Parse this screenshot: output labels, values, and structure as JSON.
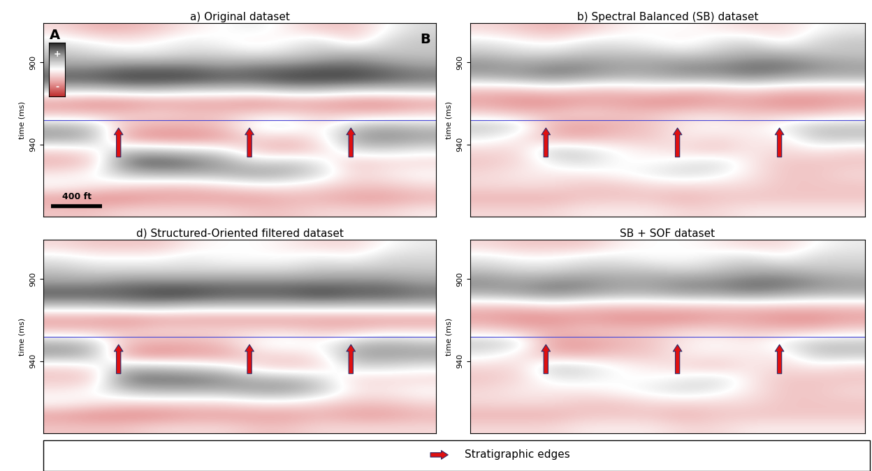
{
  "chart_data": [
    {
      "type": "heatmap",
      "title": "a) Original dataset",
      "ylabel": "time (ms)",
      "ylim": [
        975,
        881
      ],
      "yticks": [
        900,
        940
      ],
      "tick_labels": "y",
      "horizon": 928,
      "edges": [
        2.3,
        6.3,
        9.4
      ],
      "color_range": [
        -1,
        1
      ],
      "annotations": [
        "A",
        "B"
      ],
      "scale_bar": "400 ft",
      "colorbar_labels": [
        "+",
        "-"
      ],
      "cells": [
        [
          -0.2,
          -0.4,
          -0.4,
          -0.3,
          -0.1,
          0.0,
          0.1,
          -0.1,
          -0.3,
          -0.3,
          0.0,
          0.2
        ],
        [
          0.1,
          0.0,
          -0.1,
          0.0,
          0.1,
          0.0,
          -0.1,
          0.0,
          0.2,
          -0.2,
          0.2,
          0.3
        ],
        [
          0.3,
          0.2,
          0.1,
          0.1,
          0.2,
          0.2,
          0.1,
          0.2,
          0.3,
          0.4,
          0.3,
          0.3
        ],
        [
          0.5,
          0.5,
          0.6,
          0.6,
          0.6,
          0.5,
          0.6,
          0.6,
          0.7,
          0.7,
          0.6,
          0.5
        ],
        [
          0.8,
          0.8,
          0.9,
          0.9,
          0.9,
          0.8,
          0.8,
          0.9,
          0.9,
          0.9,
          0.8,
          0.7
        ],
        [
          0.3,
          0.3,
          0.4,
          0.4,
          0.3,
          0.3,
          0.3,
          0.4,
          0.4,
          0.3,
          0.3,
          0.3
        ],
        [
          -0.5,
          -0.6,
          -0.6,
          -0.5,
          -0.5,
          -0.5,
          -0.6,
          -0.5,
          -0.5,
          -0.6,
          -0.6,
          -0.5
        ],
        [
          -0.3,
          -0.3,
          -0.3,
          -0.2,
          -0.3,
          -0.3,
          -0.2,
          -0.2,
          -0.3,
          -0.3,
          -0.3,
          -0.2
        ],
        [
          0.4,
          0.3,
          -0.3,
          -0.4,
          -0.4,
          -0.3,
          0.1,
          0.2,
          -0.1,
          0.3,
          0.4,
          0.3
        ],
        [
          0.5,
          0.4,
          -0.5,
          -0.6,
          -0.6,
          -0.5,
          -0.2,
          -0.3,
          -0.1,
          0.5,
          0.6,
          0.5
        ],
        [
          -0.2,
          -0.1,
          0.3,
          0.3,
          0.2,
          0.1,
          -0.3,
          -0.4,
          -0.2,
          0.2,
          0.2,
          0.1
        ],
        [
          -0.4,
          -0.3,
          0.7,
          0.8,
          0.7,
          0.5,
          0.2,
          0.3,
          0.1,
          -0.3,
          -0.2,
          -0.2
        ],
        [
          -0.1,
          0.0,
          0.3,
          0.4,
          0.4,
          0.4,
          0.5,
          0.4,
          0.2,
          -0.2,
          -0.1,
          0.0
        ],
        [
          0.0,
          -0.1,
          -0.2,
          -0.3,
          -0.3,
          -0.2,
          -0.1,
          -0.1,
          -0.2,
          -0.3,
          -0.3,
          -0.2
        ],
        [
          -0.5,
          -0.6,
          -0.6,
          -0.5,
          -0.5,
          -0.5,
          -0.5,
          -0.4,
          -0.4,
          -0.5,
          -0.5,
          -0.4
        ],
        [
          -0.3,
          -0.3,
          -0.2,
          -0.2,
          -0.2,
          -0.2,
          -0.3,
          -0.3,
          -0.2,
          -0.2,
          -0.2,
          -0.1
        ]
      ]
    },
    {
      "type": "heatmap",
      "title": "b) Spectral Balanced (SB) dataset",
      "ylabel": "time (ms)",
      "ylim": [
        975,
        881
      ],
      "yticks": [
        900,
        940
      ],
      "tick_labels": "y",
      "horizon": 928,
      "edges": [
        2.3,
        6.3,
        9.4
      ],
      "color_range": [
        -1,
        1
      ],
      "cells": [
        [
          -0.2,
          -0.3,
          -0.4,
          -0.3,
          -0.1,
          0.0,
          0.0,
          -0.1,
          -0.2,
          -0.2,
          0.0,
          0.1
        ],
        [
          0.1,
          0.0,
          -0.1,
          0.1,
          0.1,
          0.0,
          -0.1,
          0.1,
          0.2,
          -0.1,
          0.2,
          0.3
        ],
        [
          0.3,
          0.2,
          0.2,
          0.3,
          0.3,
          0.3,
          0.2,
          0.3,
          0.4,
          0.4,
          0.3,
          0.3
        ],
        [
          0.6,
          0.5,
          0.6,
          0.6,
          0.5,
          0.5,
          0.6,
          0.6,
          0.7,
          0.7,
          0.6,
          0.5
        ],
        [
          0.4,
          0.5,
          0.6,
          0.5,
          0.4,
          0.4,
          0.5,
          0.5,
          0.6,
          0.5,
          0.4,
          0.4
        ],
        [
          -0.3,
          -0.3,
          -0.2,
          -0.3,
          -0.3,
          -0.2,
          -0.3,
          -0.3,
          -0.2,
          -0.3,
          -0.3,
          -0.3
        ],
        [
          -0.5,
          -0.6,
          -0.6,
          -0.5,
          -0.5,
          -0.6,
          -0.6,
          -0.5,
          -0.5,
          -0.6,
          -0.6,
          -0.5
        ],
        [
          -0.2,
          -0.3,
          -0.3,
          -0.2,
          -0.3,
          -0.3,
          -0.2,
          -0.2,
          -0.3,
          -0.3,
          -0.3,
          -0.2
        ],
        [
          0.3,
          0.2,
          -0.4,
          -0.5,
          -0.4,
          -0.3,
          -0.1,
          0.0,
          -0.1,
          0.1,
          0.3,
          0.3
        ],
        [
          0.1,
          -0.1,
          -0.4,
          -0.4,
          -0.3,
          -0.3,
          -0.1,
          -0.2,
          -0.1,
          -0.1,
          0.3,
          0.3
        ],
        [
          -0.2,
          -0.2,
          0.3,
          0.2,
          0.0,
          -0.1,
          -0.2,
          -0.3,
          -0.1,
          -0.2,
          -0.1,
          -0.2
        ],
        [
          -0.3,
          -0.2,
          0.1,
          0.2,
          0.0,
          0.0,
          0.1,
          0.2,
          -0.1,
          -0.3,
          -0.3,
          -0.3
        ],
        [
          -0.2,
          -0.1,
          -0.1,
          -0.1,
          0.0,
          0.1,
          0.2,
          0.1,
          -0.1,
          -0.3,
          -0.3,
          -0.2
        ],
        [
          -0.2,
          -0.2,
          -0.2,
          -0.3,
          -0.3,
          -0.2,
          -0.2,
          -0.2,
          -0.2,
          -0.3,
          -0.3,
          -0.3
        ],
        [
          -0.4,
          -0.4,
          -0.4,
          -0.3,
          -0.3,
          -0.3,
          -0.4,
          -0.3,
          -0.3,
          -0.3,
          -0.3,
          -0.3
        ],
        [
          -0.2,
          -0.2,
          -0.2,
          -0.1,
          -0.1,
          -0.1,
          -0.2,
          -0.2,
          -0.1,
          -0.1,
          -0.1,
          -0.1
        ]
      ]
    },
    {
      "type": "heatmap",
      "title": "d) Structured-Oriented filtered dataset",
      "ylabel": "time (ms)",
      "ylim": [
        975,
        881
      ],
      "yticks": [
        900,
        940
      ],
      "tick_labels": "y",
      "horizon": 928,
      "edges": [
        2.3,
        6.3,
        9.4
      ],
      "color_range": [
        -1,
        1
      ],
      "cells": [
        [
          -0.2,
          -0.3,
          -0.3,
          -0.3,
          -0.1,
          0.0,
          0.0,
          -0.1,
          -0.2,
          -0.2,
          0.0,
          0.1
        ],
        [
          0.1,
          0.0,
          0.0,
          0.0,
          0.1,
          0.0,
          0.0,
          0.0,
          0.1,
          0.0,
          0.2,
          0.2
        ],
        [
          0.3,
          0.2,
          0.2,
          0.2,
          0.2,
          0.2,
          0.2,
          0.2,
          0.3,
          0.3,
          0.3,
          0.3
        ],
        [
          0.5,
          0.5,
          0.6,
          0.6,
          0.6,
          0.6,
          0.6,
          0.6,
          0.6,
          0.6,
          0.6,
          0.5
        ],
        [
          0.8,
          0.8,
          0.8,
          0.9,
          0.9,
          0.8,
          0.8,
          0.8,
          0.9,
          0.8,
          0.8,
          0.7
        ],
        [
          0.3,
          0.3,
          0.4,
          0.4,
          0.3,
          0.3,
          0.3,
          0.3,
          0.3,
          0.3,
          0.3,
          0.3
        ],
        [
          -0.5,
          -0.5,
          -0.6,
          -0.5,
          -0.5,
          -0.5,
          -0.5,
          -0.5,
          -0.5,
          -0.5,
          -0.5,
          -0.5
        ],
        [
          -0.3,
          -0.3,
          -0.3,
          -0.2,
          -0.2,
          -0.2,
          -0.2,
          -0.2,
          -0.3,
          -0.3,
          -0.2,
          -0.2
        ],
        [
          0.4,
          0.3,
          -0.3,
          -0.4,
          -0.4,
          -0.3,
          0.0,
          0.1,
          0.0,
          0.3,
          0.4,
          0.3
        ],
        [
          0.5,
          0.4,
          -0.5,
          -0.6,
          -0.5,
          -0.5,
          -0.2,
          -0.2,
          -0.1,
          0.5,
          0.5,
          0.5
        ],
        [
          -0.2,
          -0.1,
          0.3,
          0.3,
          0.2,
          0.1,
          -0.2,
          -0.3,
          -0.2,
          0.2,
          0.2,
          0.1
        ],
        [
          -0.3,
          -0.3,
          0.7,
          0.7,
          0.7,
          0.6,
          0.4,
          0.4,
          0.2,
          -0.2,
          -0.2,
          -0.2
        ],
        [
          -0.1,
          0.0,
          0.3,
          0.4,
          0.4,
          0.4,
          0.5,
          0.5,
          0.3,
          -0.1,
          -0.1,
          0.0
        ],
        [
          0.0,
          -0.1,
          -0.2,
          -0.2,
          -0.2,
          -0.2,
          -0.1,
          -0.1,
          -0.2,
          -0.3,
          -0.3,
          -0.2
        ],
        [
          -0.5,
          -0.6,
          -0.6,
          -0.6,
          -0.5,
          -0.5,
          -0.5,
          -0.5,
          -0.4,
          -0.5,
          -0.5,
          -0.4
        ],
        [
          -0.3,
          -0.3,
          -0.3,
          -0.2,
          -0.2,
          -0.2,
          -0.3,
          -0.3,
          -0.2,
          -0.2,
          -0.2,
          -0.2
        ]
      ]
    },
    {
      "type": "heatmap",
      "title": "SB + SOF dataset",
      "ylabel": "time (ms)",
      "ylim": [
        975,
        881
      ],
      "yticks": [
        900,
        940
      ],
      "tick_labels": "y",
      "horizon": 928,
      "edges": [
        2.3,
        6.3,
        9.4
      ],
      "color_range": [
        -1,
        1
      ],
      "cells": [
        [
          -0.2,
          -0.3,
          -0.3,
          -0.3,
          -0.1,
          0.0,
          0.0,
          -0.1,
          -0.2,
          -0.2,
          0.0,
          0.1
        ],
        [
          0.1,
          0.0,
          0.0,
          0.1,
          0.1,
          0.0,
          0.0,
          0.1,
          0.2,
          0.0,
          0.2,
          0.2
        ],
        [
          0.3,
          0.2,
          0.2,
          0.3,
          0.3,
          0.3,
          0.2,
          0.3,
          0.4,
          0.4,
          0.3,
          0.3
        ],
        [
          0.6,
          0.5,
          0.6,
          0.6,
          0.5,
          0.5,
          0.6,
          0.6,
          0.7,
          0.7,
          0.6,
          0.5
        ],
        [
          0.4,
          0.5,
          0.6,
          0.5,
          0.4,
          0.4,
          0.5,
          0.5,
          0.6,
          0.5,
          0.4,
          0.4
        ],
        [
          -0.3,
          -0.3,
          -0.2,
          -0.3,
          -0.3,
          -0.3,
          -0.3,
          -0.3,
          -0.3,
          -0.3,
          -0.3,
          -0.3
        ],
        [
          -0.5,
          -0.6,
          -0.6,
          -0.5,
          -0.6,
          -0.6,
          -0.6,
          -0.5,
          -0.5,
          -0.6,
          -0.6,
          -0.5
        ],
        [
          -0.2,
          -0.3,
          -0.4,
          -0.3,
          -0.3,
          -0.3,
          -0.2,
          -0.2,
          -0.3,
          -0.3,
          -0.3,
          -0.2
        ],
        [
          0.3,
          0.2,
          -0.5,
          -0.5,
          -0.4,
          -0.3,
          -0.1,
          0.0,
          -0.1,
          0.1,
          0.3,
          0.3
        ],
        [
          0.1,
          -0.1,
          -0.4,
          -0.4,
          -0.3,
          -0.3,
          -0.1,
          -0.1,
          -0.1,
          -0.1,
          0.3,
          0.3
        ],
        [
          -0.2,
          -0.2,
          0.3,
          0.2,
          0.0,
          -0.1,
          -0.2,
          -0.3,
          -0.1,
          -0.2,
          -0.1,
          -0.2
        ],
        [
          -0.3,
          -0.2,
          0.1,
          0.1,
          0.0,
          0.0,
          0.1,
          0.2,
          -0.1,
          -0.3,
          -0.3,
          -0.3
        ],
        [
          -0.2,
          -0.1,
          -0.1,
          -0.1,
          0.0,
          0.1,
          0.2,
          0.1,
          -0.1,
          -0.3,
          -0.3,
          -0.2
        ],
        [
          -0.2,
          -0.2,
          -0.2,
          -0.3,
          -0.3,
          -0.2,
          -0.2,
          -0.2,
          -0.2,
          -0.3,
          -0.3,
          -0.3
        ],
        [
          -0.4,
          -0.4,
          -0.4,
          -0.3,
          -0.3,
          -0.3,
          -0.4,
          -0.3,
          -0.3,
          -0.3,
          -0.3,
          -0.3
        ],
        [
          -0.2,
          -0.2,
          -0.2,
          -0.1,
          -0.1,
          -0.1,
          -0.2,
          -0.2,
          -0.1,
          -0.1,
          -0.1,
          -0.1
        ]
      ]
    }
  ],
  "key": {
    "label": "Stratigraphic edges"
  }
}
